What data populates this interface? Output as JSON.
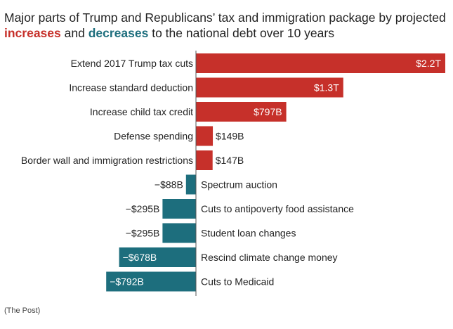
{
  "title": {
    "line1": "Major parts of Trump and Republicans’ tax and immigration package by projected",
    "increases_word": "increases",
    "and_word": " and ",
    "decreases_word": "decreases",
    "line2_rest": " to the national debt over 10 years"
  },
  "source": "(The Post)",
  "colors": {
    "increase": "#c6302a",
    "decrease": "#1d6e7d"
  },
  "chart_data": {
    "type": "bar",
    "orientation": "horizontal",
    "unit": "billions of dollars",
    "categories": [
      "Extend 2017 Trump tax cuts",
      "Increase standard deduction",
      "Increase child tax credit",
      "Defense spending",
      "Border wall and immigration restrictions",
      "Spectrum auction",
      "Cuts to antipoverty food assistance",
      "Student loan changes",
      "Rescind climate change money",
      "Cuts to Medicaid"
    ],
    "values": [
      2200,
      1300,
      797,
      149,
      147,
      -88,
      -295,
      -295,
      -678,
      -792
    ],
    "labels": [
      "$2.2T",
      "$1.3T",
      "$797B",
      "$149B",
      "$147B",
      "−$88B",
      "−$295B",
      "−$295B",
      "−$678B",
      "−$792B"
    ]
  }
}
